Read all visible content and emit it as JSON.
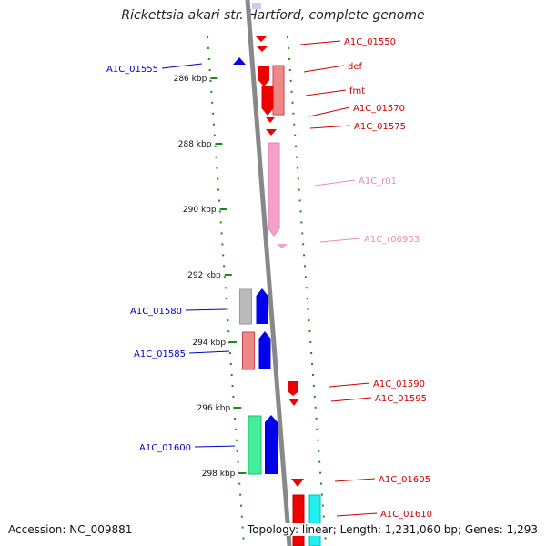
{
  "title": "Rickettsia akari str. Hartford, complete genome",
  "footer": {
    "accession": "Accession: NC_009881",
    "summary": "Topology: linear; Length: 1,231,060 bp; Genes: 1,293"
  },
  "colors": {
    "backbone": "#888888",
    "tick": "#1a8a1a",
    "reverse_label": "#0000cc",
    "forward_label": "#cc0000",
    "rna_label": "#ee88bb"
  },
  "kbp_ticks": [
    {
      "kbp": 286,
      "label": "286 kbp"
    },
    {
      "kbp": 288,
      "label": "288 kbp"
    },
    {
      "kbp": 290,
      "label": "290 kbp"
    },
    {
      "kbp": 292,
      "label": "292 kbp"
    },
    {
      "kbp": 294,
      "label": "294 kbp"
    },
    {
      "kbp": 296,
      "label": "296 kbp"
    },
    {
      "kbp": 298,
      "label": "298 kbp"
    }
  ],
  "features": [
    {
      "label": "A1C_01550",
      "side": "right",
      "color": "#ee0000",
      "label_color": "#cc0000"
    },
    {
      "label": "A1C_01555",
      "side": "left",
      "color": "#0000ee",
      "label_color": "#0000cc"
    },
    {
      "label": "def",
      "side": "right",
      "color": "#ee0000",
      "label_color": "#cc0000"
    },
    {
      "label": "fmt",
      "side": "right",
      "color": "#ee0000",
      "label_color": "#cc0000"
    },
    {
      "label": "A1C_01570",
      "side": "right",
      "color": "#ee0000",
      "label_color": "#cc0000"
    },
    {
      "label": "A1C_01575",
      "side": "right",
      "color": "#ee0000",
      "label_color": "#cc0000"
    },
    {
      "label": "A1C_r01",
      "side": "right",
      "color": "#f4a0c8",
      "label_color": "#ee88bb"
    },
    {
      "label": "A1C_r06953",
      "side": "right",
      "color": "#f4a0c8",
      "label_color": "#ee88bb"
    },
    {
      "label": "A1C_01580",
      "side": "left",
      "color": "#0000ee",
      "label_color": "#0000cc"
    },
    {
      "label": "A1C_01585",
      "side": "left",
      "color": "#0000ee",
      "label_color": "#0000cc"
    },
    {
      "label": "A1C_01590",
      "side": "right",
      "color": "#ee0000",
      "label_color": "#cc0000"
    },
    {
      "label": "A1C_01595",
      "side": "right",
      "color": "#ee0000",
      "label_color": "#cc0000"
    },
    {
      "label": "A1C_01600",
      "side": "left",
      "color": "#0000ee",
      "label_color": "#0000cc"
    },
    {
      "label": "A1C_01605",
      "side": "right",
      "color": "#ee0000",
      "label_color": "#cc0000"
    },
    {
      "label": "A1C_01610",
      "side": "right",
      "color": "#ee0000",
      "label_color": "#cc0000"
    }
  ]
}
